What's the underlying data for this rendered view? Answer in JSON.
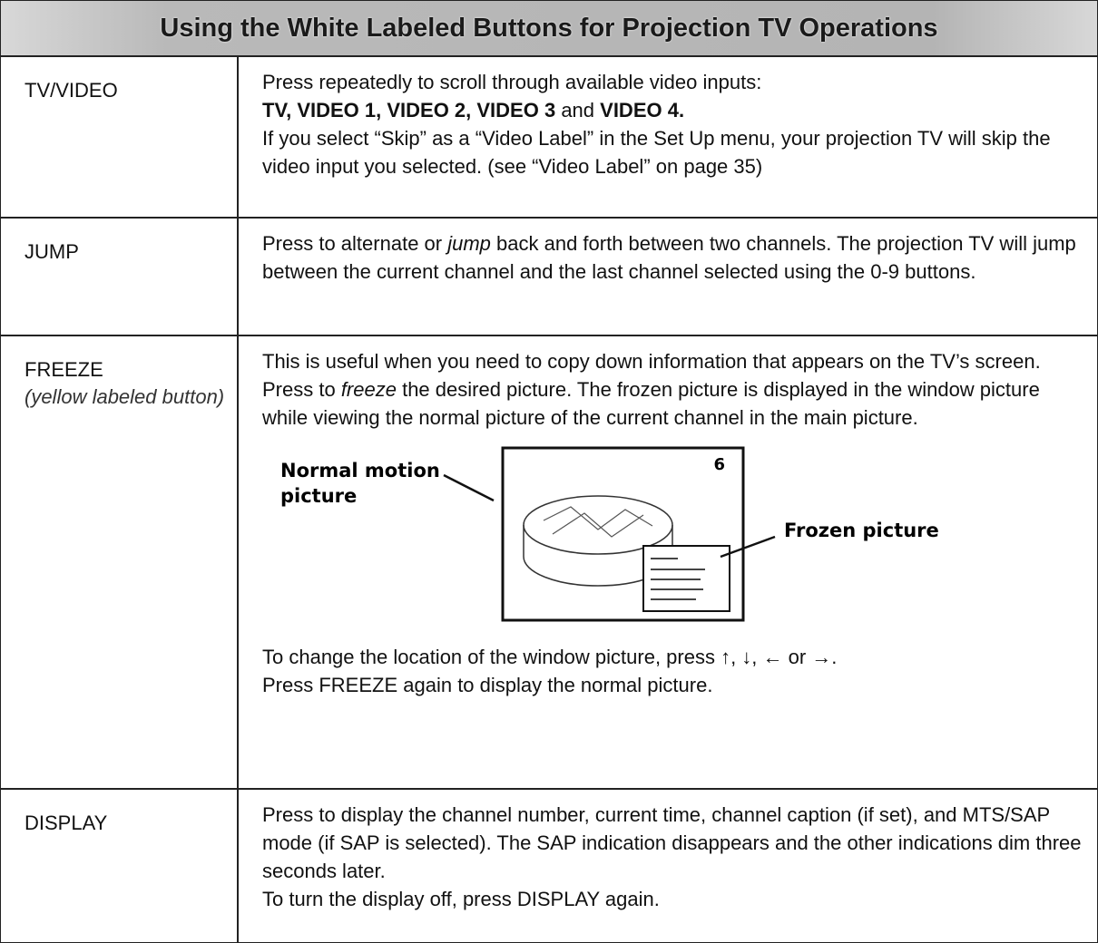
{
  "header": {
    "title": "Using the White Labeled Buttons for Projection TV Operations"
  },
  "table": {
    "rows": [
      {
        "button": "TV/VIDEO",
        "paragraphs": [
          [
            "Press repeatedly to scroll through available video inputs:"
          ],
          [
            "TV, VIDEO 1, VIDEO 2, VIDEO 3",
            " and ",
            "VIDEO 4."
          ],
          [
            "If you select “Skip” as a “Video Label” in the Set Up menu, your projection TV will skip the video input you selected. (see “Video Label” on page 35)"
          ]
        ]
      },
      {
        "button": "JUMP",
        "paragraphs": [
          [
            "Press to alternate or ",
            "jump",
            " back and forth between two channels. The projection TV will jump between the current channel and the last channel selected using the 0-9 buttons."
          ]
        ]
      },
      {
        "button": "FREEZE",
        "note": "(yellow labeled button)",
        "paragraphs": [
          [
            "This is useful when you need to copy down information that appears on the TV’s screen."
          ],
          [
            "Press to ",
            "freeze",
            " the desired picture. The frozen picture is displayed in the window picture while viewing the normal picture of the current channel in the main picture."
          ]
        ],
        "figure": {
          "normal_label": [
            "Normal motion",
            "picture"
          ],
          "channel": "6",
          "frozen_label": "Frozen picture"
        },
        "after": [
          [
            "To change the location of the window picture, press ↑, ↓, ← or →."
          ],
          [
            "Press FREEZE again to display the normal picture."
          ]
        ]
      },
      {
        "button": "DISPLAY",
        "paragraphs": [
          [
            "Press to display the channel number, current time, channel caption (if set), and MTS/SAP mode (if SAP is selected). The SAP indication disappears and the other indications dim three seconds later."
          ],
          [
            "To turn the display off, press DISPLAY again."
          ]
        ]
      }
    ]
  }
}
